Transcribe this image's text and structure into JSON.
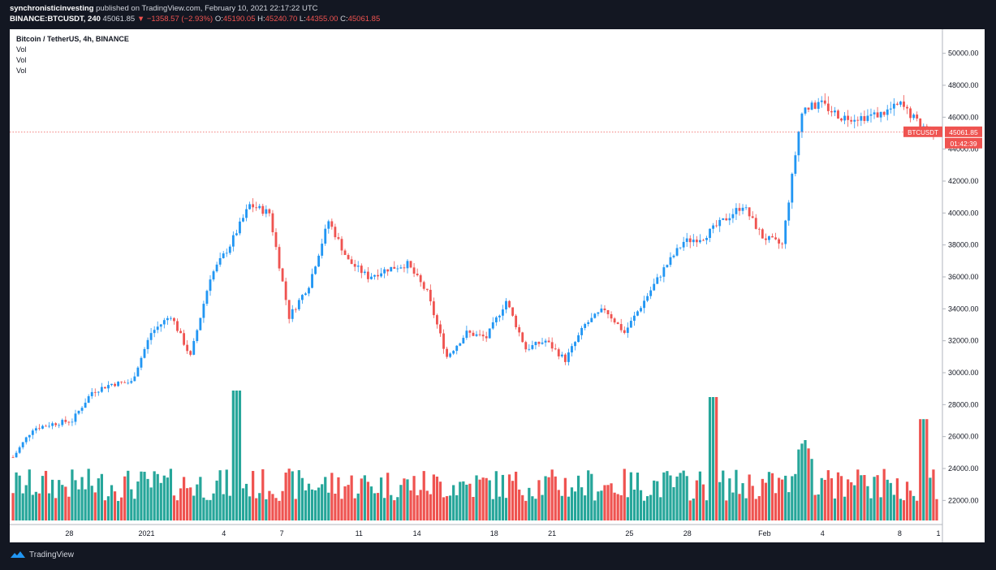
{
  "header": {
    "author": "synchronisticinvesting",
    "published_text": "published on TradingView.com, February 10, 2021 22:17:22 UTC",
    "symbol_line": "BINANCE:BTCUSDT, 240",
    "last": "45061.85",
    "change": "▼ −1358.57 (−2.93%)",
    "o_label": "O:",
    "o_value": "45190.05",
    "h_label": "H:",
    "h_value": "45240.70",
    "l_label": "L:",
    "l_value": "44355.00",
    "c_label": "C:",
    "c_value": "45061.85"
  },
  "legend": {
    "title": "Bitcoin / TetherUS, 4h, BINANCE",
    "vol1": "Vol",
    "vol2": "Vol",
    "vol3": "Vol"
  },
  "price_tag": {
    "symbol": "BTCUSDT",
    "price": "45061.85",
    "countdown": "01:42:39"
  },
  "footer": {
    "brand": "TradingView"
  },
  "colors": {
    "up": "#26a69a",
    "down": "#ef5350",
    "wick_up": "#2196f3",
    "background": "#131722"
  },
  "chart_data": {
    "type": "candlestick",
    "symbol": "BTCUSDT",
    "interval": "4h",
    "ylim": [
      21000,
      51000
    ],
    "y_ticks": [
      22000,
      24000,
      26000,
      28000,
      30000,
      32000,
      34000,
      36000,
      38000,
      40000,
      42000,
      44000,
      46000,
      48000,
      50000
    ],
    "y_tick_labels": [
      "22000.00",
      "24000.00",
      "26000.00",
      "28000.00",
      "30000.00",
      "32000.00",
      "34000.00",
      "36000.00",
      "38000.00",
      "40000.00",
      "42000.00",
      "44000.00",
      "46000.00",
      "48000.00",
      "50000.00"
    ],
    "x_tick_labels": [
      "28",
      "2021",
      "4",
      "7",
      "11",
      "14",
      "18",
      "21",
      "25",
      "28",
      "Feb",
      "4",
      "8",
      "1"
    ],
    "x_tick_days": [
      3,
      7,
      11,
      14,
      18,
      21,
      25,
      28,
      32,
      35,
      39,
      42,
      46,
      48
    ],
    "date_start": "2020-12-25",
    "date_end": "2021-02-10",
    "trajectory_days": [
      0,
      1,
      2,
      3,
      4,
      5,
      6,
      7,
      8,
      9,
      10,
      11,
      12,
      13,
      14,
      15,
      16,
      17,
      18,
      19,
      20,
      21,
      22,
      23,
      24,
      25,
      26,
      27,
      28,
      29,
      30,
      31,
      32,
      33,
      34,
      35,
      36,
      37,
      38,
      39,
      40,
      41,
      42,
      43,
      44,
      45,
      46,
      47
    ],
    "trajectory_close": [
      24700,
      26500,
      26800,
      27000,
      28800,
      29300,
      29400,
      32500,
      33600,
      31000,
      36000,
      38000,
      40500,
      40000,
      33500,
      35500,
      39500,
      37000,
      36000,
      36500,
      36800,
      35000,
      31000,
      32500,
      32200,
      34500,
      31500,
      32000,
      30800,
      33000,
      34000,
      32500,
      34500,
      36500,
      38200,
      38500,
      39500,
      40500,
      38500,
      38000,
      46500,
      46800,
      46000,
      46000,
      46200,
      46800,
      45500,
      45062
    ],
    "last_price": 45061.85,
    "current_price_line": 45061.85,
    "volume_series": [
      {
        "name": "Vol",
        "peaks": [
          {
            "day": 11.4,
            "relative": 1.0
          },
          {
            "day": 35.5,
            "relative": 0.95
          },
          {
            "day": 46.2,
            "relative": 0.78
          }
        ]
      }
    ]
  }
}
